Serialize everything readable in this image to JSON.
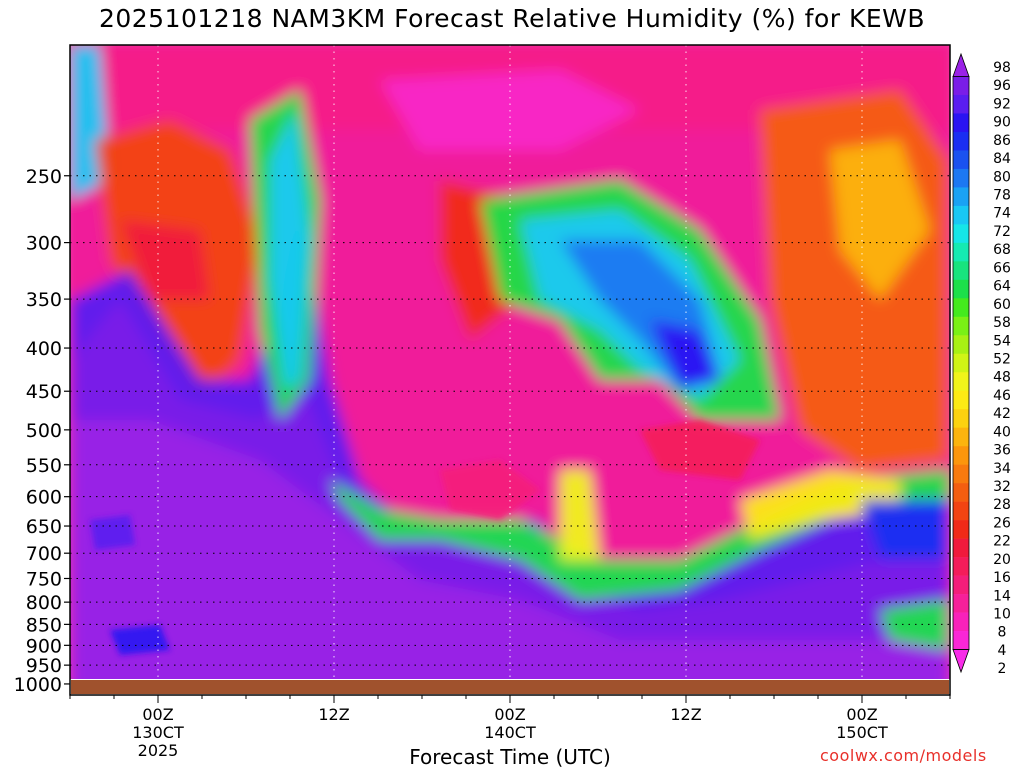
{
  "title": "2025101218 NAM3KM Forecast Relative Humidity (%) for KEWB",
  "xlabel": "Forecast Time (UTC)",
  "credit": "coolwx.com/models",
  "chart_data": {
    "type": "heatmap",
    "variable": "Relative Humidity (%)",
    "y_ticks": [
      250,
      300,
      350,
      400,
      450,
      500,
      550,
      600,
      650,
      700,
      750,
      800,
      850,
      900,
      950,
      1000
    ],
    "x_ticks": [
      {
        "hour": 6,
        "lines": [
          "00Z",
          "130CT",
          "2025"
        ]
      },
      {
        "hour": 18,
        "lines": [
          "12Z"
        ]
      },
      {
        "hour": 30,
        "lines": [
          "00Z",
          "140CT"
        ]
      },
      {
        "hour": 42,
        "lines": [
          "12Z"
        ]
      },
      {
        "hour": 54,
        "lines": [
          "00Z",
          "150CT"
        ]
      }
    ],
    "x_range_hours": [
      0,
      60
    ],
    "y_range_hpa": [
      175,
      1025
    ],
    "grid": true,
    "colorbar_labels": [
      98,
      96,
      92,
      90,
      86,
      84,
      80,
      78,
      74,
      72,
      68,
      66,
      64,
      60,
      58,
      54,
      52,
      48,
      46,
      42,
      40,
      36,
      34,
      32,
      28,
      26,
      22,
      20,
      16,
      14,
      10,
      8,
      4,
      2
    ],
    "colorbar_colors": [
      "#9a22e6",
      "#7a1ee8",
      "#5a1ef0",
      "#2a14f2",
      "#1a2ef2",
      "#1a52f0",
      "#1c78f2",
      "#1aa2f4",
      "#19c8f4",
      "#16e6e8",
      "#16eab2",
      "#18e47e",
      "#1ce04a",
      "#44ea1e",
      "#7af016",
      "#a8f014",
      "#d0f416",
      "#f0f41a",
      "#fcea14",
      "#fcd210",
      "#fcb40e",
      "#fc960c",
      "#f87a0e",
      "#f45e10",
      "#f24412",
      "#f02a18",
      "#f01a3c",
      "#f41c5a",
      "#f41e7a",
      "#f6209a",
      "#f822ba",
      "#fa26d6",
      "#f82ce8"
    ],
    "ground_color": "#a0522d",
    "regions_description_note": ""
  }
}
